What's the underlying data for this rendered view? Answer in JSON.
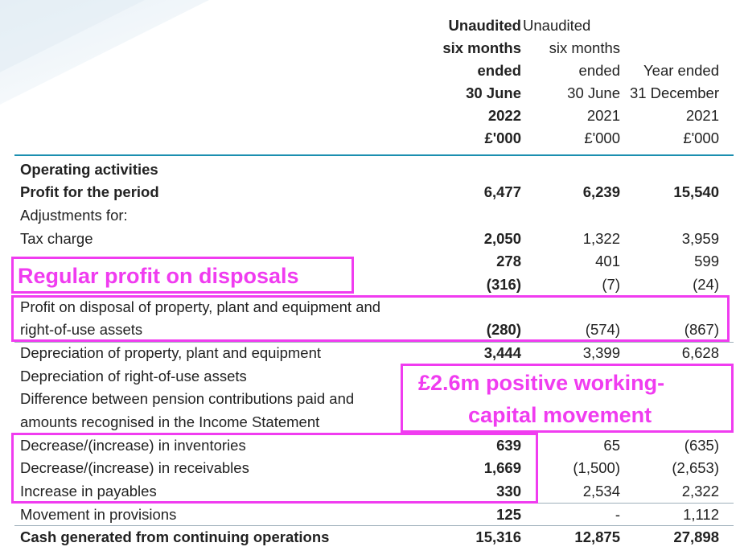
{
  "columns": {
    "col1": [
      "Unaudited",
      "six months",
      "ended",
      "30 June",
      "2022",
      "£'000"
    ],
    "col2": [
      "Unaudited",
      "six months",
      "ended",
      "30 June",
      "2021",
      "£'000"
    ],
    "col3": [
      "Year ended",
      "31 December",
      "2021",
      "£'000"
    ]
  },
  "rows": [
    {
      "label": "Operating activities",
      "bold": true,
      "v1": "",
      "v2": "",
      "v3": ""
    },
    {
      "label": "Profit for the period",
      "bold": true,
      "v1": "6,477",
      "v2": "6,239",
      "v3": "15,540"
    },
    {
      "label": "Adjustments for:",
      "v1": "",
      "v2": "",
      "v3": ""
    },
    {
      "label": "Tax charge",
      "v1": "2,050",
      "v2": "1,322",
      "v3": "3,959"
    },
    {
      "label": "",
      "v1": "278",
      "v2": "401",
      "v3": "599"
    },
    {
      "label": "",
      "v1": "(316)",
      "v2": "(7)",
      "v3": "(24)"
    },
    {
      "label": "Profit on disposal of property, plant and equipment and",
      "v1": "",
      "v2": "",
      "v3": ""
    },
    {
      "label": "right-of-use assets",
      "v1": "(280)",
      "v2": "(574)",
      "v3": "(867)"
    },
    {
      "label": "Depreciation of property, plant and equipment",
      "v1": "3,444",
      "v2": "3,399",
      "v3": "6,628"
    },
    {
      "label": "Depreciation of right-of-use assets",
      "v1": "",
      "v2": "",
      "v3": ""
    },
    {
      "label": "Difference between pension contributions paid and",
      "v1": "",
      "v2": "",
      "v3": ""
    },
    {
      "label": "amounts recognised in the Income Statement",
      "v1": "",
      "v2": "",
      "v3": ""
    },
    {
      "label": "Decrease/(increase) in inventories",
      "v1": "639",
      "v2": "65",
      "v3": "(635)"
    },
    {
      "label": "Decrease/(increase) in receivables",
      "v1": "1,669",
      "v2": "(1,500)",
      "v3": "(2,653)"
    },
    {
      "label": "Increase in payables",
      "v1": "330",
      "v2": "2,534",
      "v3": "2,322"
    },
    {
      "label": "Movement in provisions",
      "v1": "125",
      "v2": "-",
      "v3": "1,112"
    },
    {
      "label": "Cash generated from continuing operations",
      "bold": true,
      "v1": "15,316",
      "v2": "12,875",
      "v3": "27,898"
    }
  ],
  "annotations": {
    "disposals": "Regular profit on disposals",
    "working_capital_1": "£2.6m positive working-",
    "working_capital_2": "capital movement"
  },
  "colors": {
    "accent_rule": "#1b8fb0",
    "annotation": "#f03cf0"
  }
}
